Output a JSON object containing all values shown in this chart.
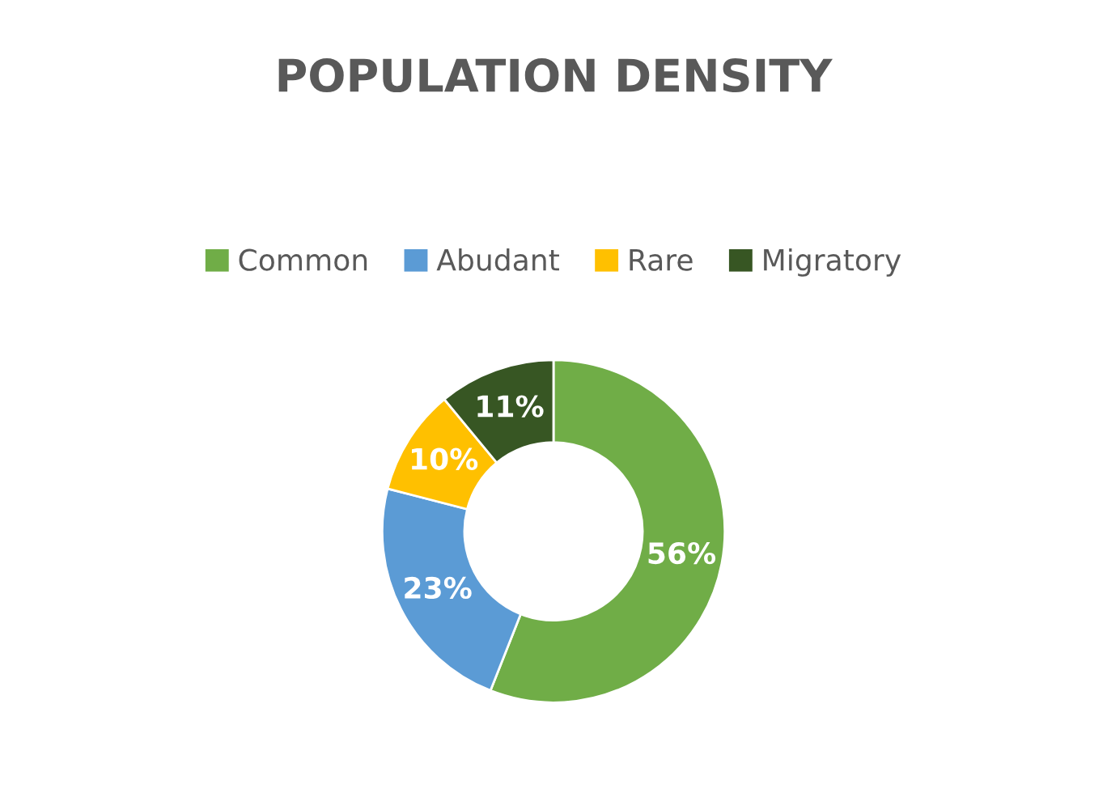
{
  "chart_data": {
    "type": "donut",
    "title": "POPULATION DENSITY",
    "categories": [
      "Common",
      "Abudant",
      "Rare",
      "Migratory"
    ],
    "values": [
      56,
      23,
      10,
      11
    ],
    "value_labels": [
      "56%",
      "23%",
      "10%",
      "11%"
    ],
    "colors": [
      "#70ad47",
      "#5b9bd5",
      "#ffc000",
      "#375623"
    ],
    "legend": "top"
  }
}
